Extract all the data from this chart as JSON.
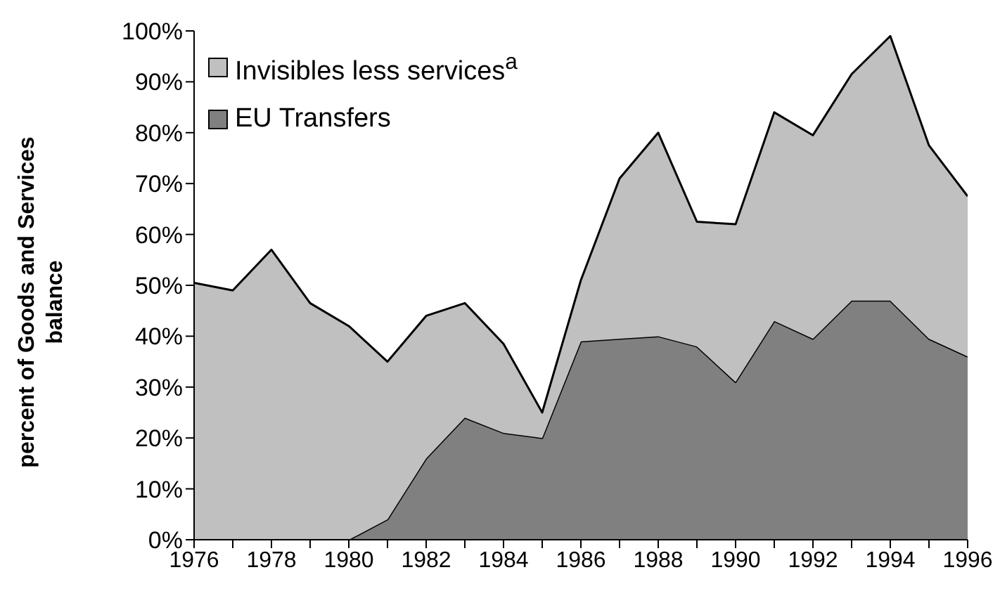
{
  "chart_data": {
    "type": "area",
    "stacked": true,
    "ylabel": "percent of Goods and Services balance",
    "x": [
      1976,
      1977,
      1978,
      1979,
      1980,
      1981,
      1982,
      1983,
      1984,
      1985,
      1986,
      1987,
      1988,
      1989,
      1990,
      1991,
      1992,
      1993,
      1994,
      1995,
      1996
    ],
    "series": [
      {
        "name": "EU Transfers",
        "color": "#808080",
        "values": [
          0,
          0,
          0,
          0,
          0,
          4,
          16,
          24,
          21,
          20,
          39,
          39.5,
          40,
          38,
          31,
          43,
          39.5,
          47,
          47,
          39.5,
          36
        ]
      },
      {
        "name": "Invisibles less services$^{a}$",
        "color": "#c0c0c0",
        "values": [
          50.5,
          49,
          57,
          46.5,
          42,
          31,
          28,
          22.5,
          17.5,
          5,
          12,
          31.5,
          40,
          24.5,
          31,
          41,
          40,
          44.5,
          52,
          38,
          31.5
        ]
      }
    ],
    "xlim": [
      1976,
      1996
    ],
    "xticks": [
      1976,
      {
        "value": 1977,
        "label": null
      },
      1978,
      {
        "value": 1979,
        "label": null
      },
      1980,
      {
        "value": 1981,
        "label": null
      },
      1982,
      {
        "value": 1983,
        "label": null
      },
      1984,
      {
        "value": 1985,
        "label": null
      },
      1986,
      {
        "value": 1987,
        "label": null
      },
      1988,
      {
        "value": 1989,
        "label": null
      },
      1990,
      {
        "value": 1991,
        "label": null
      },
      1992,
      {
        "value": 1993,
        "label": null
      },
      1994,
      {
        "value": 1995,
        "label": null
      },
      1996
    ],
    "ylim": [
      0,
      100
    ],
    "yticks": [
      {
        "value": 0,
        "label": "0%"
      },
      {
        "value": 10,
        "label": "10%"
      },
      {
        "value": 20,
        "label": "20%"
      },
      {
        "value": 30,
        "label": "30%"
      },
      {
        "value": 40,
        "label": "40%"
      },
      {
        "value": 50,
        "label": "50%"
      },
      {
        "value": 60,
        "label": "60%"
      },
      {
        "value": 70,
        "label": "70%"
      },
      {
        "value": 80,
        "label": "80%"
      },
      {
        "value": 90,
        "label": "90%"
      },
      {
        "value": 100,
        "label": "100%"
      }
    ],
    "grid": false,
    "legend": "top left"
  }
}
